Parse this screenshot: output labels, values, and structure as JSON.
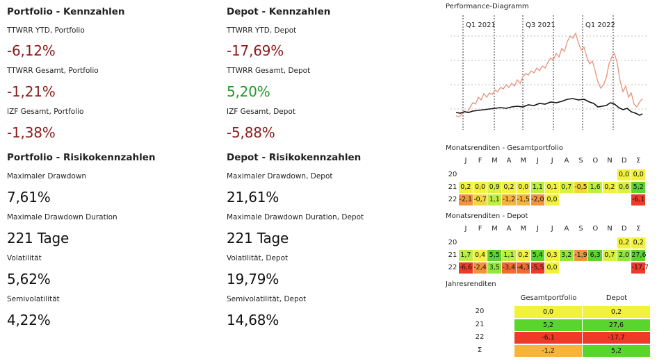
{
  "left": {
    "section1_title": "Portfolio - Kennzahlen",
    "section2_title": "Portfolio - Risikokennzahlen",
    "kpis": [
      {
        "label": "TTWRR YTD, Portfolio",
        "value": "-6,12%"
      },
      {
        "label": "TTWRR Gesamt, Portfolio",
        "value": "-1,21%"
      },
      {
        "label": "IZF Gesamt, Portfolio",
        "value": "-1,38%"
      }
    ],
    "risk": [
      {
        "label": "Maximaler Drawdown",
        "value": "7,61%"
      },
      {
        "label": "Maximale Drawdown Duration",
        "value": "221 Tage"
      },
      {
        "label": "Volatilität",
        "value": "5,62%"
      },
      {
        "label": "Semivolatilität",
        "value": "4,22%"
      }
    ]
  },
  "mid": {
    "section1_title": "Depot - Kennzahlen",
    "section2_title": "Depot - Risikokennzahlen",
    "kpis": [
      {
        "label": "TTWRR YTD, Depot",
        "value": "-17,69%"
      },
      {
        "label": "TTWRR Gesamt, Depot",
        "value": "5,20%"
      },
      {
        "label": "IZF Gesamt, Depot",
        "value": "-5,88%"
      }
    ],
    "risk": [
      {
        "label": "Maximaler Drawdown, Depot",
        "value": "21,61%"
      },
      {
        "label": "Maximale Drawdown Duration, Depot",
        "value": "221 Tage"
      },
      {
        "label": "Volatilität, Depot",
        "value": "19,79%"
      },
      {
        "label": "Semivolatilität, Depot",
        "value": "14,68%"
      }
    ]
  },
  "colors": {
    "negative": "#8b1a1a",
    "positive": "#1f9a2a",
    "portfolio_line": "#111111",
    "depot_line": "#e8907a"
  },
  "performance": {
    "title": "Performance-Diagramm",
    "quarter_labels": [
      "Q1 2021",
      "Q3 2021",
      "Q1 2022"
    ]
  },
  "monthly_headers": [
    "J",
    "F",
    "M",
    "A",
    "M",
    "J",
    "J",
    "A",
    "S",
    "O",
    "N",
    "D",
    "Σ"
  ],
  "monthly_portfolio": {
    "title": "Monatsrenditen - Gesamtportfolio",
    "rows": [
      {
        "year": "20",
        "cells": [
          "",
          "",
          "",
          "",
          "",
          "",
          "",
          "",
          "",
          "",
          "",
          "0,0",
          "0,0"
        ]
      },
      {
        "year": "21",
        "cells": [
          "0,2",
          "0,0",
          "0,9",
          "0,2",
          "0,0",
          "1,1",
          "0,1",
          "0,7",
          "-0,5",
          "1,6",
          "0,2",
          "0,6",
          "5,2"
        ]
      },
      {
        "year": "22",
        "cells": [
          "-2,1",
          "-0,7",
          "1,1",
          "-1,2",
          "-1,5",
          "-2,0",
          "0,0",
          "",
          "",
          "",
          "",
          "",
          "-6,1"
        ]
      }
    ]
  },
  "monthly_depot": {
    "title": "Monatsrenditen - Depot",
    "rows": [
      {
        "year": "20",
        "cells": [
          "",
          "",
          "",
          "",
          "",
          "",
          "",
          "",
          "",
          "",
          "",
          "0,2",
          "0,2"
        ]
      },
      {
        "year": "21",
        "cells": [
          "1,7",
          "0,4",
          "5,5",
          "1,1",
          "0,2",
          "5,4",
          "0,3",
          "3,2",
          "-1,9",
          "6,3",
          "0,7",
          "2,0",
          "27,6"
        ]
      },
      {
        "year": "22",
        "cells": [
          "-6,6",
          "-2,4",
          "3,5",
          "-3,4",
          "-4,3",
          "-5,5",
          "0,0",
          "",
          "",
          "",
          "",
          "",
          "-17,7"
        ]
      }
    ]
  },
  "yearly": {
    "title": "Jahresrenditen",
    "col_portfolio": "Gesamtportfolio",
    "col_depot": "Depot",
    "rows": [
      {
        "year": "20",
        "portfolio": "0,0",
        "depot": "0,2"
      },
      {
        "year": "21",
        "portfolio": "5,2",
        "depot": "27,6"
      },
      {
        "year": "22",
        "portfolio": "-6,1",
        "depot": "-17,7"
      },
      {
        "year": "Σ",
        "portfolio": "-1,2",
        "depot": "5,2"
      }
    ]
  }
}
